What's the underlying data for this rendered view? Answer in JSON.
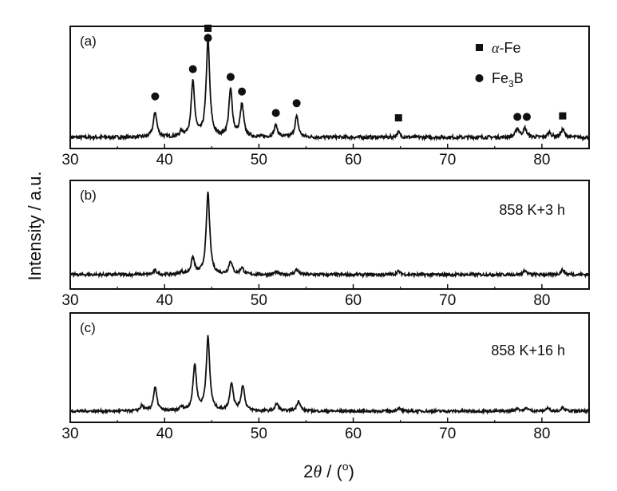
{
  "chart_data": {
    "type": "line",
    "xlabel_parts": {
      "prefix": "2",
      "symbol": "θ",
      "suffix": " / (",
      "sup": "o",
      "close": ")"
    },
    "ylabel": "Intensity / a.u.",
    "xlim": [
      30,
      85
    ],
    "x_ticks": [
      30,
      40,
      50,
      60,
      70,
      80
    ],
    "panels": [
      {
        "label": "(a)",
        "condition": "",
        "peaks": [
          {
            "x": 39.0,
            "y": 0.26
          },
          {
            "x": 41.8,
            "y": 0.05
          },
          {
            "x": 43.0,
            "y": 0.56
          },
          {
            "x": 44.6,
            "y": 1.0
          },
          {
            "x": 47.0,
            "y": 0.48
          },
          {
            "x": 48.2,
            "y": 0.33
          },
          {
            "x": 51.8,
            "y": 0.12
          },
          {
            "x": 54.0,
            "y": 0.21
          },
          {
            "x": 64.8,
            "y": 0.05
          },
          {
            "x": 77.4,
            "y": 0.09
          },
          {
            "x": 78.2,
            "y": 0.09
          },
          {
            "x": 80.8,
            "y": 0.05
          },
          {
            "x": 82.2,
            "y": 0.08
          }
        ],
        "markers": [
          {
            "phase": "alpha-Fe",
            "x": 44.6,
            "level": 1.12
          },
          {
            "phase": "alpha-Fe",
            "x": 64.8,
            "level": 0.2
          },
          {
            "phase": "alpha-Fe",
            "x": 82.2,
            "level": 0.22
          },
          {
            "phase": "Fe3B",
            "x": 39.0,
            "level": 0.42
          },
          {
            "phase": "Fe3B",
            "x": 43.0,
            "level": 0.7
          },
          {
            "phase": "Fe3B",
            "x": 44.6,
            "level": 1.02
          },
          {
            "phase": "Fe3B",
            "x": 47.0,
            "level": 0.62
          },
          {
            "phase": "Fe3B",
            "x": 48.2,
            "level": 0.47
          },
          {
            "phase": "Fe3B",
            "x": 51.8,
            "level": 0.25
          },
          {
            "phase": "Fe3B",
            "x": 54.0,
            "level": 0.35
          },
          {
            "phase": "Fe3B",
            "x": 77.4,
            "level": 0.21
          },
          {
            "phase": "Fe3B",
            "x": 78.4,
            "level": 0.21
          }
        ]
      },
      {
        "label": "(b)",
        "condition": "858 K+3 h",
        "peaks": [
          {
            "x": 39.0,
            "y": 0.05
          },
          {
            "x": 41.8,
            "y": 0.03
          },
          {
            "x": 43.0,
            "y": 0.2
          },
          {
            "x": 44.6,
            "y": 1.0
          },
          {
            "x": 47.0,
            "y": 0.16
          },
          {
            "x": 48.2,
            "y": 0.08
          },
          {
            "x": 51.8,
            "y": 0.03
          },
          {
            "x": 54.0,
            "y": 0.06
          },
          {
            "x": 64.8,
            "y": 0.04
          },
          {
            "x": 78.2,
            "y": 0.05
          },
          {
            "x": 82.2,
            "y": 0.06
          }
        ],
        "markers": []
      },
      {
        "label": "(c)",
        "condition": "858 K+16 h",
        "peaks": [
          {
            "x": 37.6,
            "y": 0.07
          },
          {
            "x": 39.0,
            "y": 0.32
          },
          {
            "x": 41.8,
            "y": 0.05
          },
          {
            "x": 43.2,
            "y": 0.62
          },
          {
            "x": 44.6,
            "y": 1.0
          },
          {
            "x": 47.1,
            "y": 0.38
          },
          {
            "x": 48.3,
            "y": 0.34
          },
          {
            "x": 51.9,
            "y": 0.1
          },
          {
            "x": 54.2,
            "y": 0.14
          },
          {
            "x": 64.8,
            "y": 0.04
          },
          {
            "x": 77.4,
            "y": 0.04
          },
          {
            "x": 78.4,
            "y": 0.04
          },
          {
            "x": 80.6,
            "y": 0.04
          },
          {
            "x": 82.2,
            "y": 0.05
          }
        ],
        "markers": []
      }
    ],
    "legend": [
      {
        "symbol": "square",
        "text_parts": {
          "italic": "α",
          "rest": "-Fe"
        }
      },
      {
        "symbol": "circle",
        "text_parts": {
          "base": "Fe",
          "sub": "3",
          "tail": "B"
        }
      }
    ],
    "legend_placement": "top-right of panel (a)",
    "grid": false
  },
  "colors": {
    "line": "#111111",
    "frame": "#111111",
    "background": "#ffffff"
  }
}
